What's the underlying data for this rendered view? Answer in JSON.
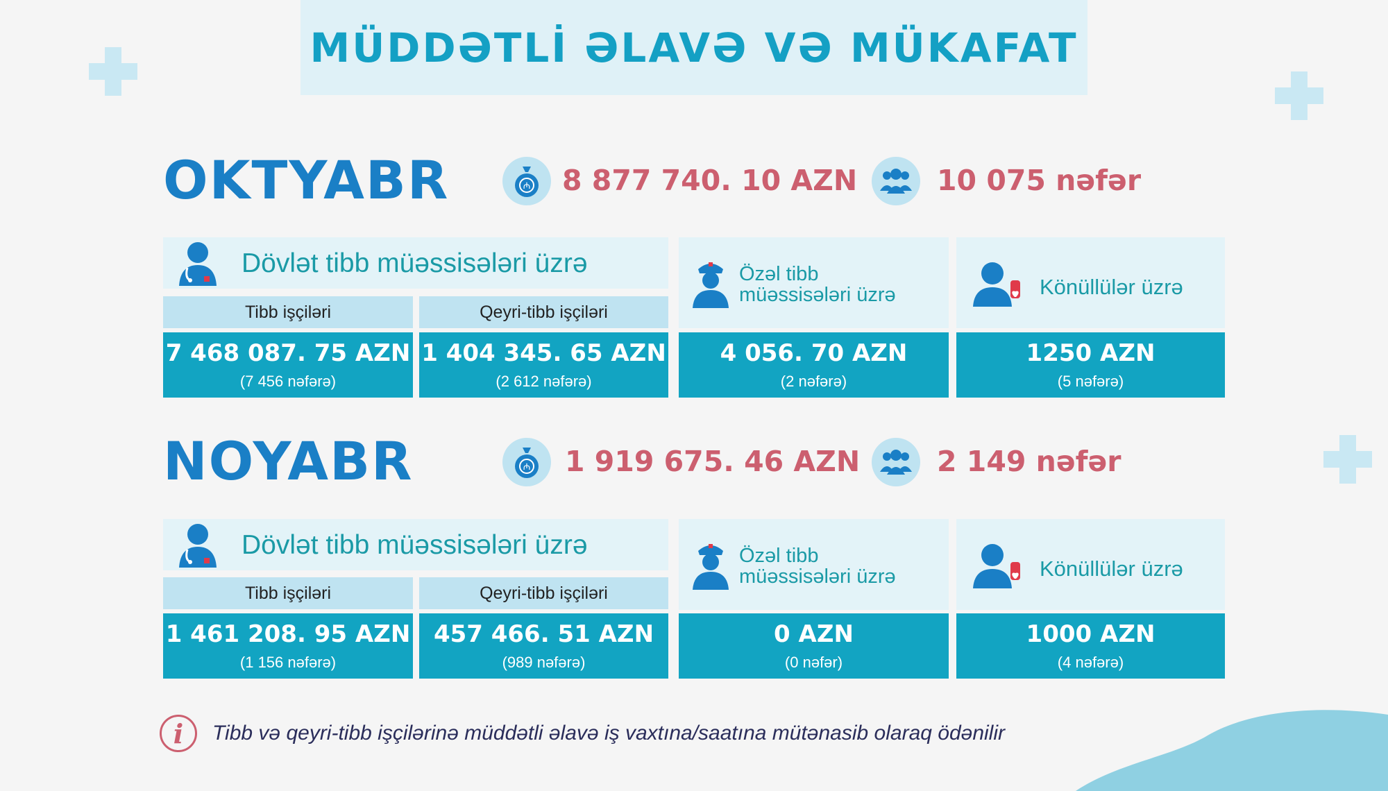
{
  "title": "MÜDDƏTLİ ƏLAVƏ VƏ MÜKAFAT",
  "months": [
    {
      "name": "OKTYABR",
      "total_amount": "8 877 740. 10 AZN",
      "total_people": "10 075 nəfər",
      "state": {
        "title": "Dövlət tibb müəssisələri üzrə",
        "medical_label": "Tibb işçiləri",
        "medical_amount": "7 468 087. 75 AZN",
        "medical_count": "(7 456 nəfərə)",
        "nonmedical_label": "Qeyri-tibb işçiləri",
        "nonmedical_amount": "1 404 345. 65 AZN",
        "nonmedical_count": "(2 612 nəfərə)"
      },
      "private": {
        "title": "Özəl tibb müəssisələri üzrə",
        "amount": "4 056. 70 AZN",
        "count": "(2 nəfərə)"
      },
      "volunteers": {
        "title": "Könüllülər üzrə",
        "amount": "1250 AZN",
        "count": "(5 nəfərə)"
      }
    },
    {
      "name": "NOYABR",
      "total_amount": "1 919 675. 46 AZN",
      "total_people": "2 149 nəfər",
      "state": {
        "title": "Dövlət tibb müəssisələri üzrə",
        "medical_label": "Tibb işçiləri",
        "medical_amount": "1 461 208. 95 AZN",
        "medical_count": "(1 156 nəfərə)",
        "nonmedical_label": "Qeyri-tibb işçiləri",
        "nonmedical_amount": "457 466. 51 AZN",
        "nonmedical_count": "(989 nəfərə)"
      },
      "private": {
        "title": "Özəl tibb müəssisələri üzrə",
        "amount": "0 AZN",
        "count": "(0 nəfər)"
      },
      "volunteers": {
        "title": "Könüllülər üzrə",
        "amount": "1000 AZN",
        "count": "(4 nəfərə)"
      }
    }
  ],
  "note": "Tibb və qeyri-tibb işçilərinə müddətli əlavə iş vaxtına/saatına mütənasib olaraq ödənilir",
  "colors": {
    "title": "#14a0c4",
    "month": "#1a7fc6",
    "stat": "#cc5f6f",
    "panel_teal": "#12a4c2",
    "panel_light": "#e3f3f8"
  },
  "icons": [
    "money-bag-icon",
    "people-group-icon",
    "doctor-icon",
    "nurse-icon",
    "volunteer-heart-icon",
    "info-icon"
  ]
}
